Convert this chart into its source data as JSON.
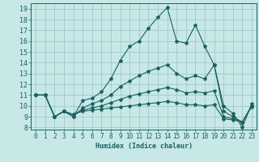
{
  "title": "",
  "xlabel": "Humidex (Indice chaleur)",
  "background_color": "#c8e8e8",
  "grid_color": "#a0c8c8",
  "line_color": "#1a6060",
  "xlim": [
    -0.5,
    23.5
  ],
  "ylim": [
    7.8,
    19.5
  ],
  "xticks": [
    0,
    1,
    2,
    3,
    4,
    5,
    6,
    7,
    8,
    9,
    10,
    11,
    12,
    13,
    14,
    15,
    16,
    17,
    18,
    19,
    20,
    21,
    22,
    23
  ],
  "yticks": [
    8,
    9,
    10,
    11,
    12,
    13,
    14,
    15,
    16,
    17,
    18,
    19
  ],
  "series": [
    [
      11.0,
      11.0,
      9.0,
      9.5,
      9.0,
      10.5,
      10.7,
      11.3,
      12.5,
      14.2,
      15.5,
      16.0,
      17.2,
      18.2,
      19.1,
      16.0,
      15.8,
      17.5,
      15.5,
      13.8,
      10.0,
      9.3,
      8.0,
      10.2
    ],
    [
      11.0,
      11.0,
      9.0,
      9.5,
      9.0,
      9.8,
      10.2,
      10.5,
      11.0,
      11.8,
      12.3,
      12.8,
      13.2,
      13.5,
      13.8,
      13.0,
      12.5,
      12.8,
      12.5,
      13.8,
      9.5,
      9.0,
      8.5,
      10.0
    ],
    [
      11.0,
      11.0,
      9.0,
      9.5,
      9.2,
      9.6,
      9.8,
      10.0,
      10.3,
      10.6,
      10.9,
      11.1,
      11.3,
      11.5,
      11.7,
      11.5,
      11.2,
      11.3,
      11.2,
      11.4,
      9.0,
      8.8,
      8.5,
      10.0
    ],
    [
      11.0,
      11.0,
      9.0,
      9.5,
      9.2,
      9.5,
      9.6,
      9.7,
      9.8,
      9.9,
      10.0,
      10.1,
      10.2,
      10.3,
      10.4,
      10.3,
      10.1,
      10.1,
      10.0,
      10.1,
      8.8,
      8.7,
      8.5,
      9.9
    ]
  ]
}
